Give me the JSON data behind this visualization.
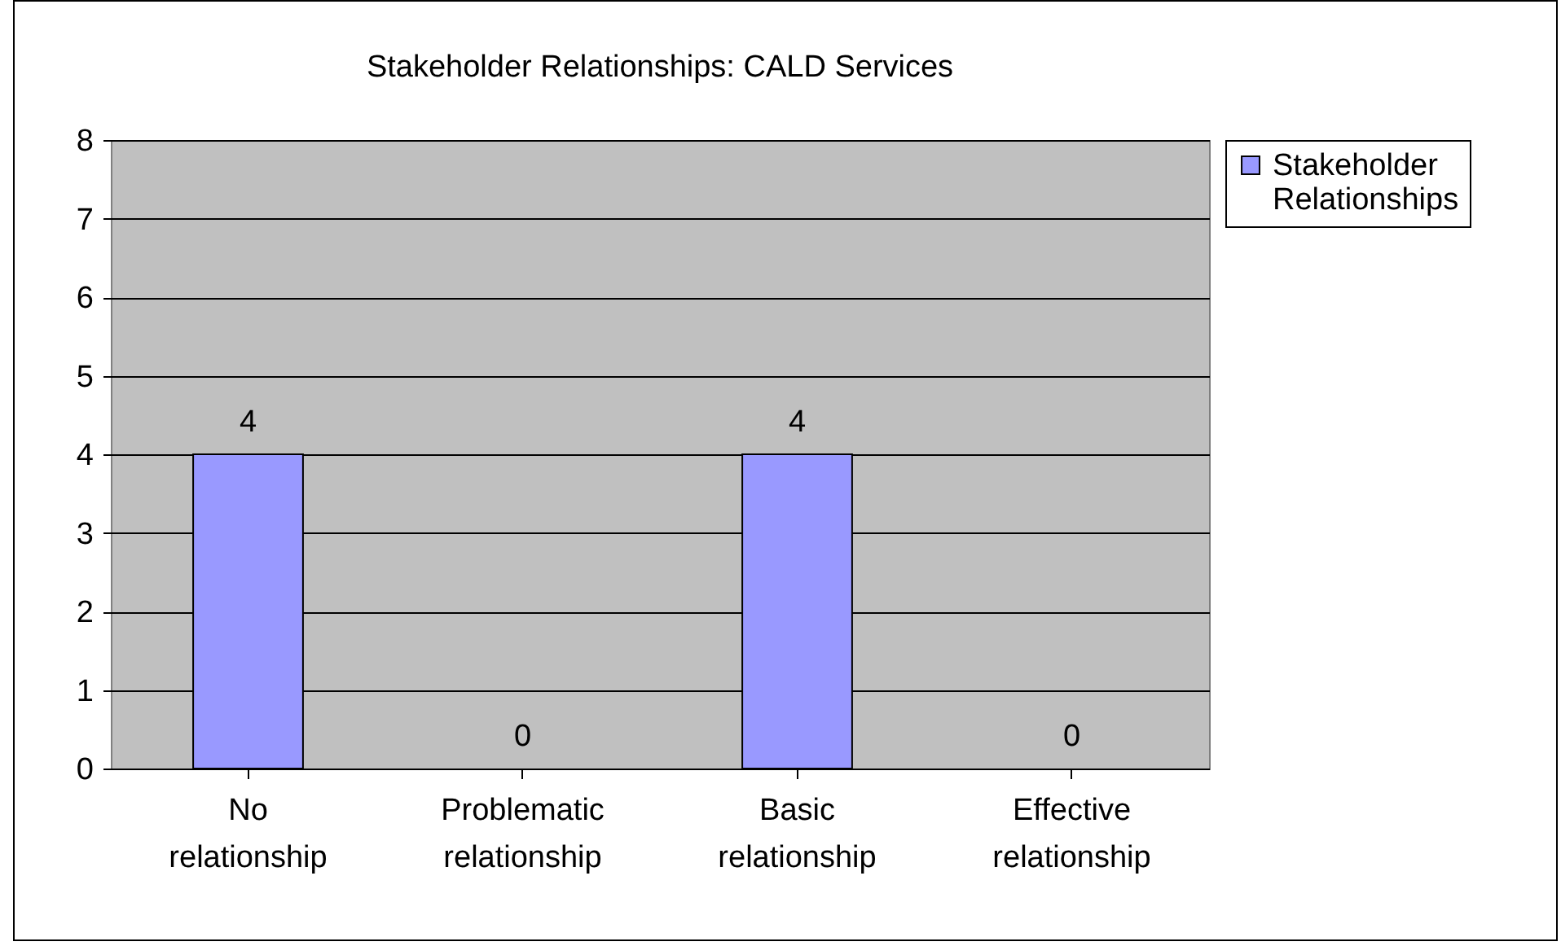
{
  "chart_data": {
    "type": "bar",
    "title": "Stakeholder Relationships: CALD Services",
    "categories": [
      "No relationship",
      "Problematic relationship",
      "Basic relationship",
      "Effective relationship"
    ],
    "series": [
      {
        "name": "Stakeholder Relationships",
        "color": "#9999ff",
        "values": [
          4,
          0,
          4,
          0
        ]
      }
    ],
    "ylim": [
      0,
      8
    ],
    "yticks": [
      0,
      1,
      2,
      3,
      4,
      5,
      6,
      7,
      8
    ],
    "grid": "y",
    "legend": "right",
    "data_labels": true
  }
}
